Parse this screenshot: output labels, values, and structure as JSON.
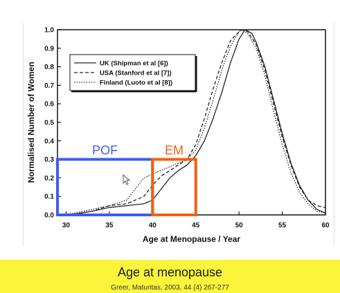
{
  "chart_data": {
    "type": "line",
    "xlabel": "Age at Menopause / Year",
    "ylabel": "Normalised Number of Women",
    "xlim": [
      29,
      60
    ],
    "ylim": [
      0,
      1.0
    ],
    "xticks": [
      30,
      35,
      40,
      45,
      50,
      55,
      60
    ],
    "yticks": [
      "0.0",
      "0.1",
      "0.2",
      "0.3",
      "0.4",
      "0.5",
      "0.6",
      "0.7",
      "0.8",
      "0.9",
      "1.0"
    ],
    "legend_position": "top-left",
    "series": [
      {
        "name": "UK (Shipman et al [6])",
        "style": "solid",
        "points": [
          [
            29,
            0
          ],
          [
            31,
            0.005
          ],
          [
            33,
            0.02
          ],
          [
            35,
            0.04
          ],
          [
            37,
            0.05
          ],
          [
            39,
            0.06
          ],
          [
            40,
            0.08
          ],
          [
            41,
            0.14
          ],
          [
            42,
            0.2
          ],
          [
            43,
            0.24
          ],
          [
            44,
            0.27
          ],
          [
            45,
            0.32
          ],
          [
            46,
            0.4
          ],
          [
            47,
            0.52
          ],
          [
            48,
            0.66
          ],
          [
            49,
            0.82
          ],
          [
            50,
            0.95
          ],
          [
            50.7,
            1.0
          ],
          [
            51.5,
            0.98
          ],
          [
            52,
            0.93
          ],
          [
            53,
            0.8
          ],
          [
            54,
            0.62
          ],
          [
            55,
            0.44
          ],
          [
            56,
            0.28
          ],
          [
            57,
            0.16
          ],
          [
            58,
            0.08
          ],
          [
            59,
            0.03
          ],
          [
            60,
            0.01
          ]
        ]
      },
      {
        "name": "USA (Stanford et al [7])",
        "style": "dashed",
        "points": [
          [
            29,
            0
          ],
          [
            31,
            0.005
          ],
          [
            33,
            0.02
          ],
          [
            35,
            0.05
          ],
          [
            37,
            0.06
          ],
          [
            39,
            0.1
          ],
          [
            40,
            0.16
          ],
          [
            41,
            0.21
          ],
          [
            42,
            0.24
          ],
          [
            43,
            0.27
          ],
          [
            44,
            0.3
          ],
          [
            45,
            0.38
          ],
          [
            46,
            0.52
          ],
          [
            47,
            0.68
          ],
          [
            48,
            0.82
          ],
          [
            49,
            0.94
          ],
          [
            50,
            0.99
          ],
          [
            50.5,
            1.0
          ],
          [
            51,
            0.99
          ],
          [
            52,
            0.92
          ],
          [
            53,
            0.78
          ],
          [
            54,
            0.6
          ],
          [
            55,
            0.42
          ],
          [
            56,
            0.27
          ],
          [
            57,
            0.15
          ],
          [
            58,
            0.08
          ],
          [
            59,
            0.05
          ],
          [
            60,
            0.04
          ]
        ]
      },
      {
        "name": "Finland (Luoto et al [8])",
        "style": "dotted",
        "points": [
          [
            29,
            0
          ],
          [
            31,
            0.01
          ],
          [
            33,
            0.03
          ],
          [
            35,
            0.05
          ],
          [
            37,
            0.08
          ],
          [
            38,
            0.14
          ],
          [
            39,
            0.2
          ],
          [
            40,
            0.22
          ],
          [
            41,
            0.24
          ],
          [
            42,
            0.26
          ],
          [
            43,
            0.28
          ],
          [
            44,
            0.3
          ],
          [
            45,
            0.35
          ],
          [
            46,
            0.47
          ],
          [
            47,
            0.62
          ],
          [
            48,
            0.78
          ],
          [
            49,
            0.91
          ],
          [
            50,
            0.99
          ],
          [
            50.3,
            1.0
          ],
          [
            51,
            0.98
          ],
          [
            52,
            0.9
          ],
          [
            53,
            0.75
          ],
          [
            54,
            0.56
          ],
          [
            55,
            0.38
          ],
          [
            56,
            0.23
          ],
          [
            57,
            0.12
          ],
          [
            58,
            0.06
          ],
          [
            59,
            0.02
          ],
          [
            60,
            0.01
          ]
        ]
      }
    ],
    "annotations": [
      {
        "label": "POF",
        "x_range": [
          29,
          40
        ],
        "y_range": [
          0,
          0.3
        ],
        "color": "#3d5cf2"
      },
      {
        "label": "EM",
        "x_range": [
          40,
          45
        ],
        "y_range": [
          0,
          0.3
        ],
        "color": "#f2600f"
      }
    ]
  },
  "caption": {
    "title": "Age at menopause",
    "source": "Greer, Maturitas, 2003, 44 (4) 267-277"
  }
}
